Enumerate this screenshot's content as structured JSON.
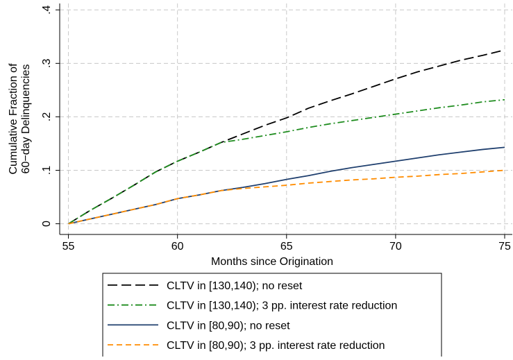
{
  "chart_data": {
    "type": "line",
    "y_label": [
      "Cumulative Fraction of",
      "60−day Delinquencies"
    ],
    "x_label": "Months since Origination",
    "x": [
      55,
      56,
      57,
      58,
      59,
      60,
      61,
      62,
      63,
      64,
      65,
      66,
      67,
      68,
      69,
      70,
      71,
      72,
      73,
      74,
      75
    ],
    "xlim": [
      54.6,
      75.35
    ],
    "xticks": [
      55,
      60,
      65,
      70,
      75
    ],
    "ylim": [
      -0.02,
      0.412
    ],
    "yticks": [
      0,
      {
        "value": 0.1,
        "label": ".1"
      },
      {
        "value": 0.2,
        "label": ".2"
      },
      {
        "value": 0.3,
        "label": ".3"
      },
      {
        "value": 0.4,
        "label": ".4"
      }
    ],
    "grid": true,
    "series": [
      {
        "name": "CLTV in [130,140); no reset",
        "color": "#000000",
        "dash": "14 6",
        "values": [
          0,
          0.025,
          0.048,
          0.072,
          0.097,
          0.117,
          0.134,
          0.152,
          0.168,
          0.184,
          0.198,
          0.216,
          0.23,
          0.243,
          0.257,
          0.271,
          0.284,
          0.295,
          0.306,
          0.315,
          0.325
        ]
      },
      {
        "name": "CLTV in [130,140); 3 pp. interest rate reduction",
        "color": "#1e8c1e",
        "dash": "10 4 2 4",
        "values": [
          0,
          0.025,
          0.048,
          0.072,
          0.097,
          0.117,
          0.134,
          0.152,
          0.158,
          0.165,
          0.172,
          0.18,
          0.187,
          0.193,
          0.199,
          0.205,
          0.211,
          0.217,
          0.222,
          0.228,
          0.232
        ]
      },
      {
        "name": "CLTV in [80,90); no reset",
        "color": "#1f3f6e",
        "dash": "none",
        "values": [
          0,
          0.009,
          0.018,
          0.027,
          0.036,
          0.047,
          0.054,
          0.062,
          0.068,
          0.075,
          0.083,
          0.09,
          0.098,
          0.105,
          0.111,
          0.117,
          0.123,
          0.129,
          0.134,
          0.139,
          0.143
        ]
      },
      {
        "name": "CLTV in [80,90); 3 pp. interest rate reduction",
        "color": "#ff8c00",
        "dash": "8 5",
        "values": [
          0,
          0.009,
          0.018,
          0.027,
          0.036,
          0.047,
          0.054,
          0.062,
          0.066,
          0.069,
          0.072,
          0.076,
          0.079,
          0.082,
          0.084,
          0.087,
          0.089,
          0.092,
          0.094,
          0.097,
          0.1
        ]
      }
    ]
  }
}
